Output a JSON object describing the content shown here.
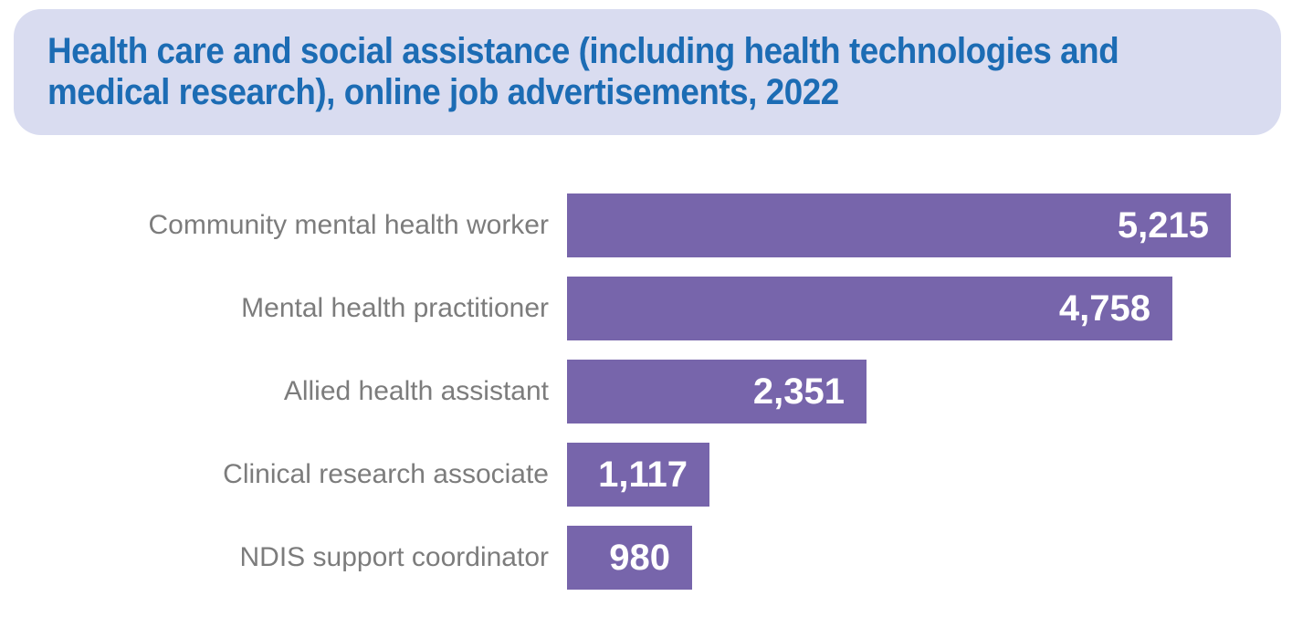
{
  "header": {
    "title_lines": [
      "Health care and social assistance (including health technologies and",
      "medical research), online job advertisements, 2022"
    ],
    "background_color": "#D9DCF0",
    "text_color": "#1C6CB4"
  },
  "chart_data": {
    "type": "bar",
    "orientation": "horizontal",
    "title": "Health care and social assistance (including health technologies and medical research), online job advertisements, 2022",
    "categories": [
      "Community mental health worker",
      "Mental health practitioner",
      "Allied health assistant",
      "Clinical research associate",
      "NDIS support coordinator"
    ],
    "values": [
      5215,
      4758,
      2351,
      1117,
      980
    ],
    "value_labels": [
      "5,215",
      "4,758",
      "2,351",
      "1,117",
      "980"
    ],
    "xlim": [
      0,
      5215
    ],
    "grid": false,
    "legend": false,
    "bar_color": "#7765AB",
    "category_label_color": "#7C7C7C",
    "value_label_color": "#FFFFFF",
    "background_color": "#FFFFFF"
  }
}
